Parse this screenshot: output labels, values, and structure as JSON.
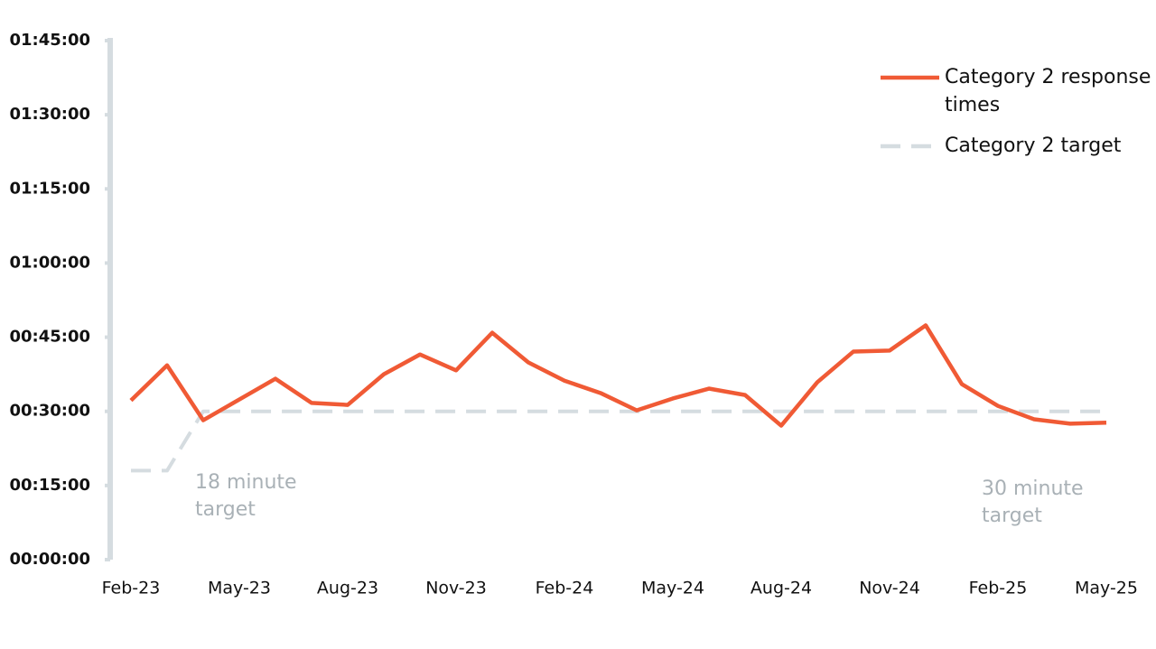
{
  "chart_data": {
    "type": "line",
    "categories": [
      "Feb-23",
      null,
      null,
      "May-23",
      null,
      null,
      "Aug-23",
      null,
      null,
      "Nov-23",
      null,
      null,
      "Feb-24",
      null,
      null,
      "May-24",
      null,
      null,
      "Aug-24",
      null,
      null,
      "Nov-24",
      null,
      null,
      "Feb-25",
      null,
      null,
      "May-25"
    ],
    "series": [
      {
        "name": "Category 2 response times",
        "color": "#f05a35",
        "dashed": false,
        "values": [
          32.2,
          39.3,
          28.2,
          32.4,
          36.6,
          31.7,
          31.3,
          37.5,
          41.5,
          38.3,
          45.9,
          39.9,
          36.2,
          33.7,
          30.2,
          32.6,
          34.6,
          33.3,
          27.1,
          35.9,
          42.1,
          42.3,
          47.4,
          35.5,
          31.1,
          28.4,
          27.5,
          27.7
        ]
      },
      {
        "name": "Category 2 target",
        "color": "#d5dce0",
        "dashed": true,
        "values": [
          18,
          18,
          30,
          30,
          30,
          30,
          30,
          30,
          30,
          30,
          30,
          30,
          30,
          30,
          30,
          30,
          30,
          30,
          30,
          30,
          30,
          30,
          30,
          30,
          30,
          30,
          30,
          30
        ]
      }
    ],
    "ylim": [
      0,
      105
    ],
    "yticks": [
      {
        "value": 0,
        "label": "00:00:00"
      },
      {
        "value": 15,
        "label": "00:15:00"
      },
      {
        "value": 30,
        "label": "00:30:00"
      },
      {
        "value": 45,
        "label": "00:45:00"
      },
      {
        "value": 60,
        "label": "01:00:00"
      },
      {
        "value": 75,
        "label": "01:15:00"
      },
      {
        "value": 90,
        "label": "01:30:00"
      },
      {
        "value": 105,
        "label": "01:45:00"
      }
    ],
    "annotations": [
      "18 minute target",
      "30 minute target"
    ],
    "legend": "upper right"
  }
}
